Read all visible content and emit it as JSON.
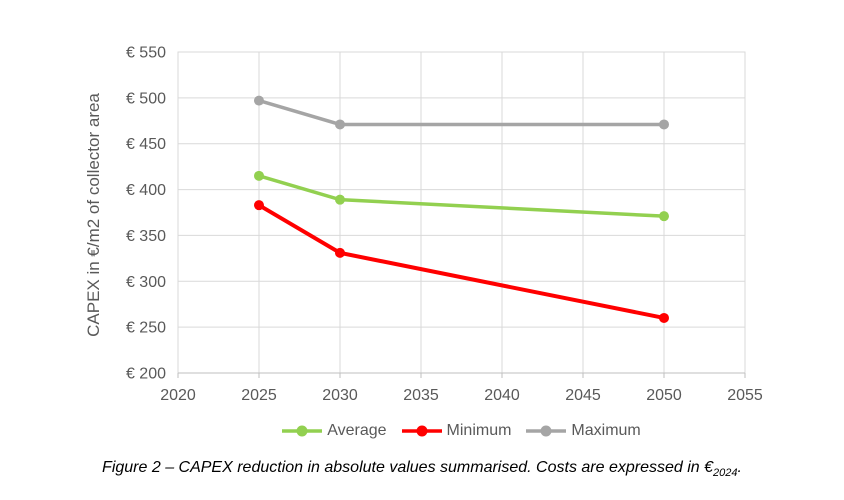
{
  "chart_data": {
    "type": "line",
    "title": "",
    "xlabel": "",
    "ylabel": "CAPEX in €/m2 of collector area",
    "x": [
      2025,
      2030,
      2050
    ],
    "series": [
      {
        "name": "Average",
        "color": "#92D050",
        "values": [
          415,
          389,
          371
        ]
      },
      {
        "name": "Minimum",
        "color": "#FF0000",
        "values": [
          383,
          331,
          260
        ]
      },
      {
        "name": "Maximum",
        "color": "#A5A5A5",
        "values": [
          497,
          471,
          471
        ]
      }
    ],
    "xlim": [
      2020,
      2055
    ],
    "ylim": [
      200,
      550
    ],
    "x_ticks": [
      2020,
      2025,
      2030,
      2035,
      2040,
      2045,
      2050,
      2055
    ],
    "y_ticks": [
      200,
      250,
      300,
      350,
      400,
      450,
      500,
      550
    ],
    "y_tick_prefix": "€ ",
    "grid": true,
    "legend_position": "bottom",
    "colors": {
      "gridline": "#D9D9D9",
      "plot_border": "#D9D9D9",
      "axis_line": "#BFBFBF",
      "axis_text": "#595959"
    }
  },
  "figure": {
    "caption": {
      "prefix": "Figure 2 – CAPEX reduction in absolute values summarised. Costs are expressed in €",
      "subscript": "2024",
      "suffix": "."
    }
  }
}
